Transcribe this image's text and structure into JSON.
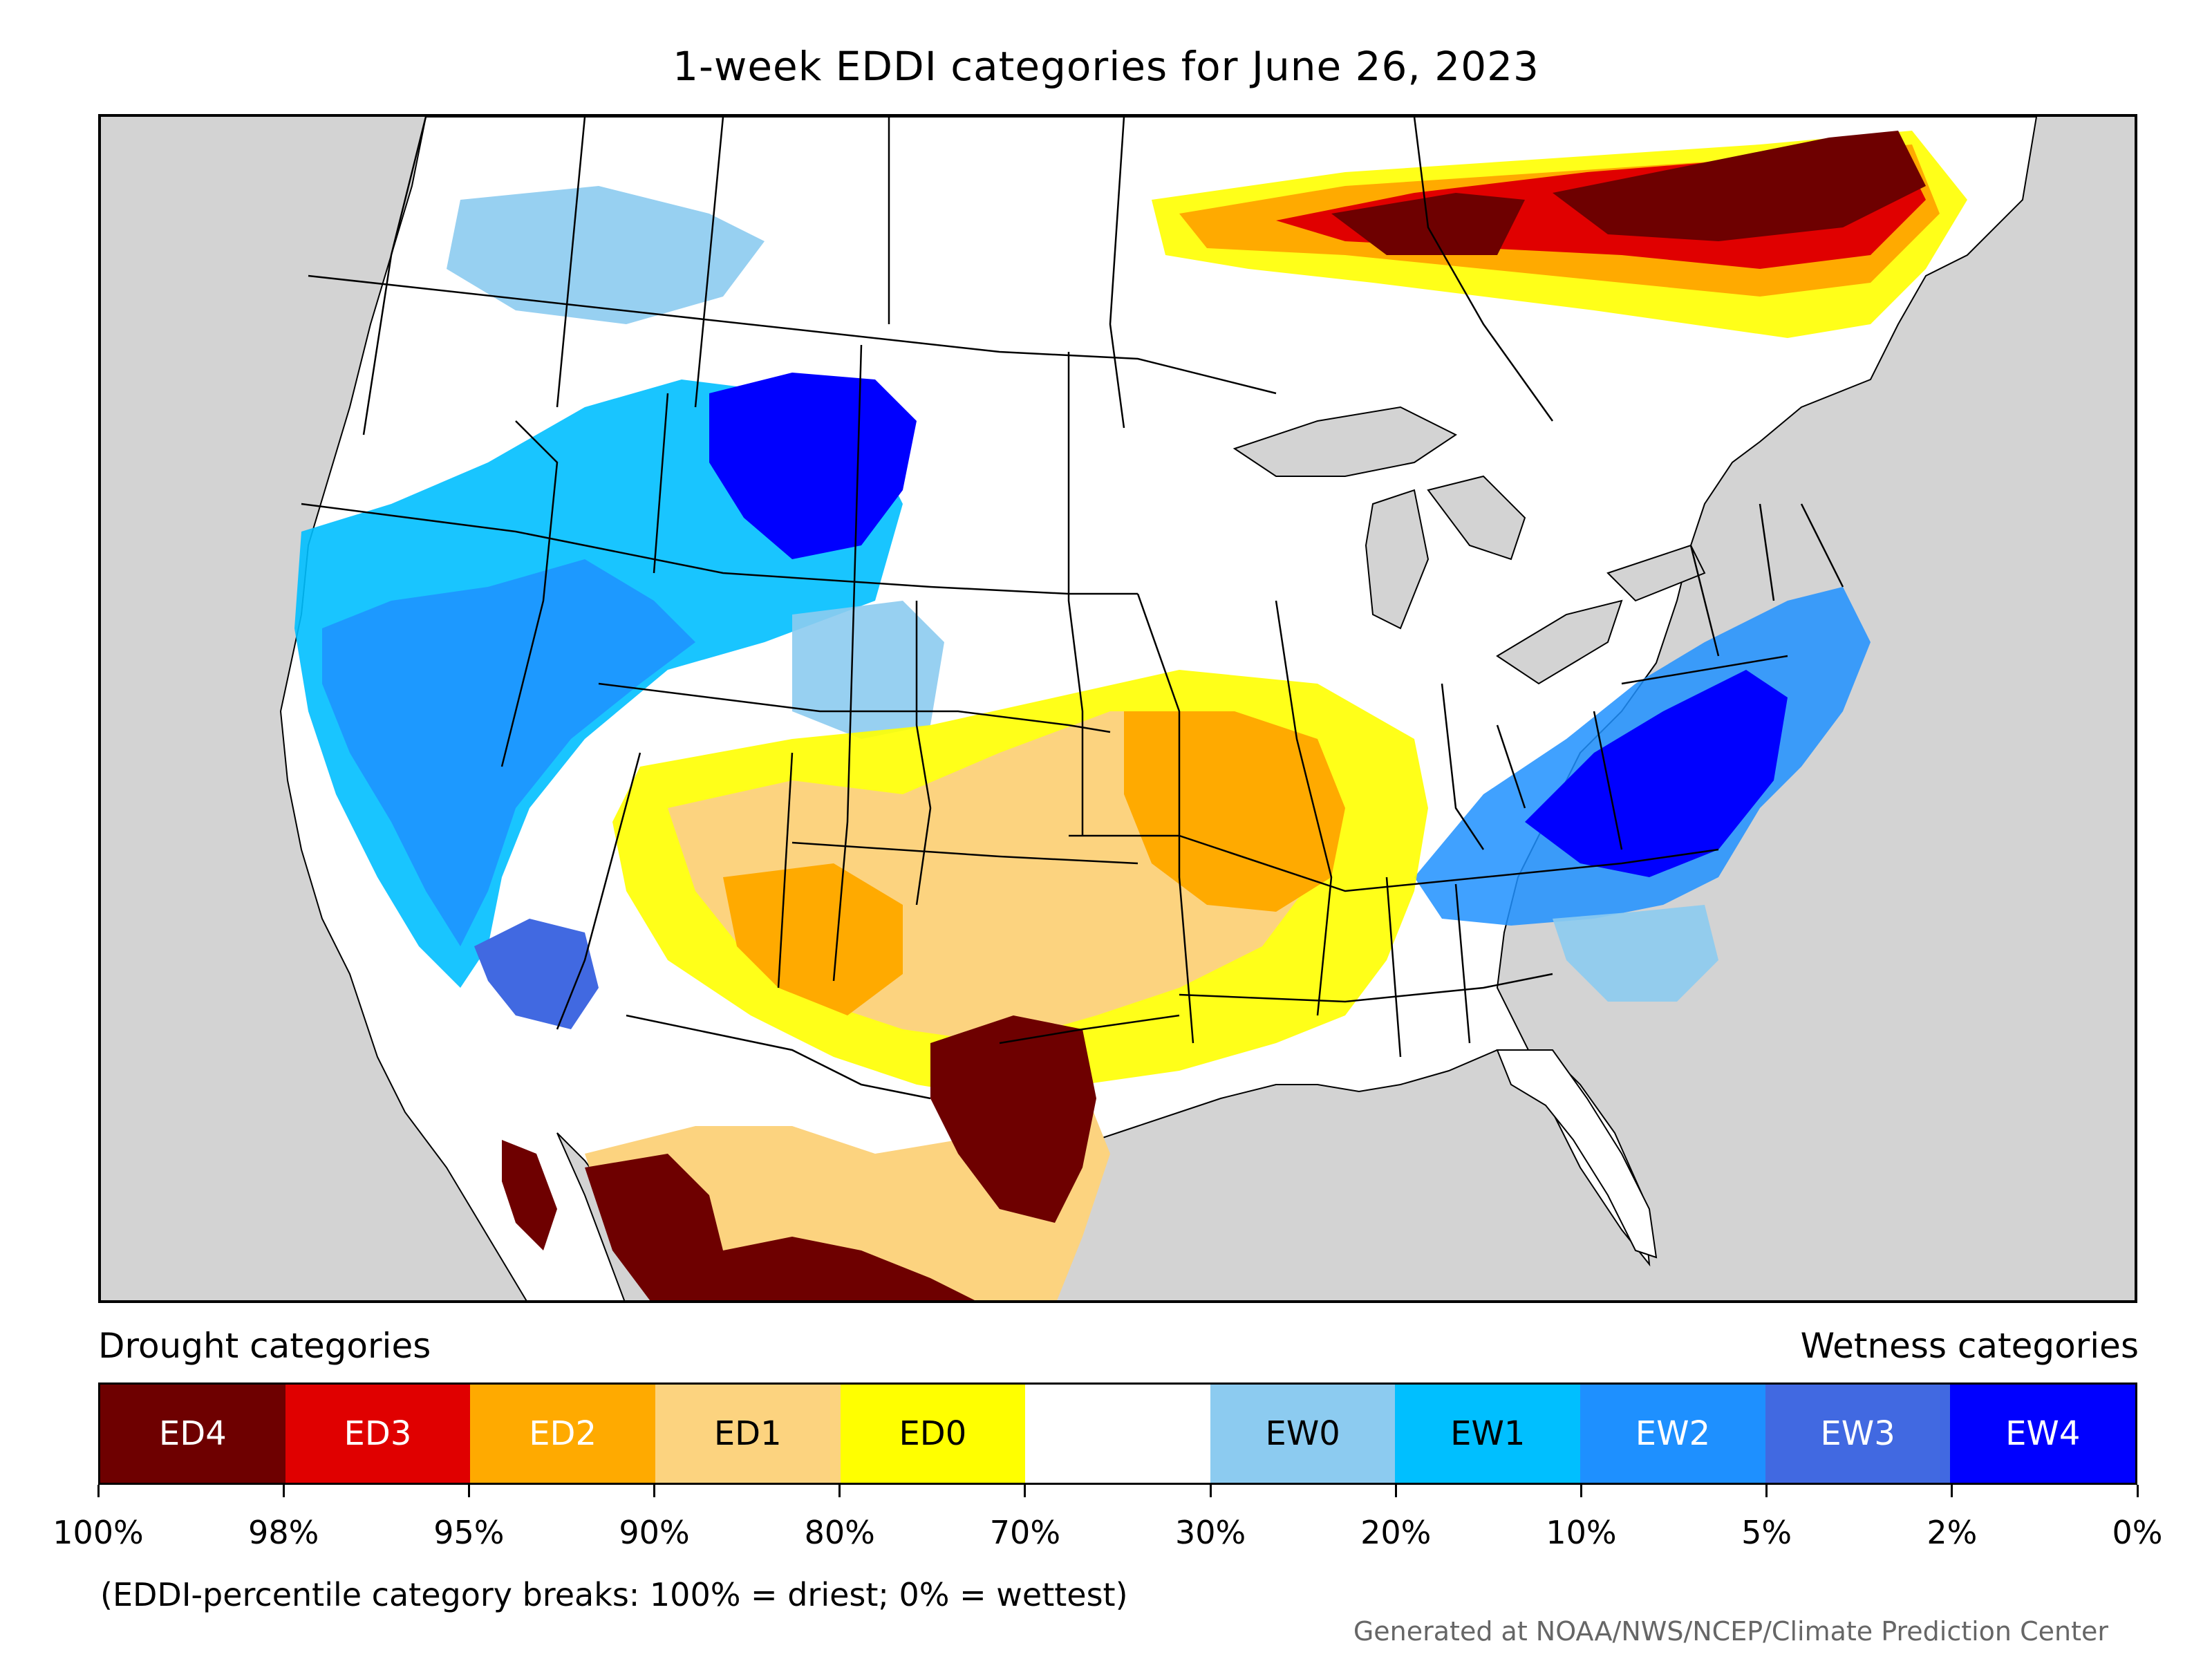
{
  "title": "1-week EDDI categories for June 26, 2023",
  "legend": {
    "left_label": "Drought categories",
    "right_label": "Wetness categories",
    "categories": [
      {
        "label": "ED4",
        "color": "#6e0000",
        "text_color": "#ffffff"
      },
      {
        "label": "ED3",
        "color": "#e00000",
        "text_color": "#ffffff"
      },
      {
        "label": "ED2",
        "color": "#ffaa00",
        "text_color": "#ffffff"
      },
      {
        "label": "ED1",
        "color": "#fcd37f",
        "text_color": "#000000"
      },
      {
        "label": "ED0",
        "color": "#ffff00",
        "text_color": "#000000"
      },
      {
        "label": "",
        "color": "#ffffff",
        "text_color": "#000000"
      },
      {
        "label": "EW0",
        "color": "#8ccbf0",
        "text_color": "#000000"
      },
      {
        "label": "EW1",
        "color": "#00bfff",
        "text_color": "#000000"
      },
      {
        "label": "EW2",
        "color": "#1e90ff",
        "text_color": "#ffffff"
      },
      {
        "label": "EW3",
        "color": "#4169e1",
        "text_color": "#ffffff"
      },
      {
        "label": "EW4",
        "color": "#0000ff",
        "text_color": "#ffffff"
      }
    ],
    "tick_labels": [
      "100%",
      "98%",
      "95%",
      "90%",
      "80%",
      "70%",
      "30%",
      "20%",
      "10%",
      "5%",
      "2%",
      "0%"
    ]
  },
  "note": "(EDDI-percentile category breaks: 100% = driest; 0% = wettest)",
  "credit": "Generated at NOAA/NWS/NCEP/Climate Prediction Center",
  "map": {
    "background_color": "#d3d3d3",
    "land_color": "#ffffff",
    "boundary_color": "#000000"
  }
}
